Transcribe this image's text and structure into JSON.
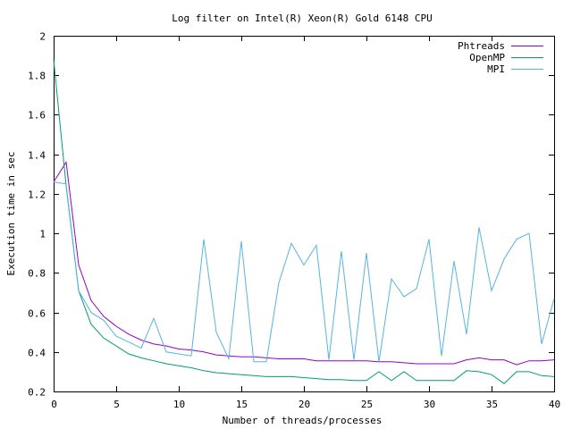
{
  "chart_data": {
    "type": "line",
    "title": "Log filter on Intel(R) Xeon(R) Gold 6148 CPU",
    "xlabel": "Number of threads/processes",
    "ylabel": "Execution time in sec",
    "xlim": [
      0,
      40
    ],
    "ylim": [
      0.2,
      2
    ],
    "xticks": [
      0,
      5,
      10,
      15,
      20,
      25,
      30,
      35,
      40
    ],
    "xtick_labels": [
      "0",
      "5",
      "10",
      "15",
      "20",
      "25",
      "30",
      "35",
      "40"
    ],
    "yticks": [
      0.2,
      0.4,
      0.6,
      0.8,
      1.0,
      1.2,
      1.4,
      1.6,
      1.8,
      2.0
    ],
    "ytick_labels": [
      "0.2",
      "0.4",
      "0.6",
      "0.8",
      "1",
      "1.2",
      "1.4",
      "1.6",
      "1.8",
      "2"
    ],
    "grid": false,
    "legend_position": "top-right",
    "x": [
      0,
      1,
      2,
      3,
      4,
      5,
      6,
      7,
      8,
      9,
      10,
      11,
      12,
      13,
      14,
      15,
      16,
      17,
      18,
      19,
      20,
      21,
      22,
      23,
      24,
      25,
      26,
      27,
      28,
      29,
      30,
      31,
      32,
      33,
      34,
      35,
      36,
      37,
      38,
      39,
      40
    ],
    "series": [
      {
        "name": "Phtreads",
        "color": "#9400d3",
        "values": [
          1.26,
          1.36,
          0.84,
          0.66,
          0.58,
          0.53,
          0.49,
          0.46,
          0.44,
          0.43,
          0.415,
          0.41,
          0.4,
          0.385,
          0.38,
          0.375,
          0.375,
          0.37,
          0.365,
          0.365,
          0.365,
          0.355,
          0.355,
          0.355,
          0.355,
          0.355,
          0.35,
          0.35,
          0.345,
          0.34,
          0.34,
          0.34,
          0.34,
          0.36,
          0.37,
          0.36,
          0.36,
          0.335,
          0.355,
          0.355,
          0.36
        ]
      },
      {
        "name": "OpenMP",
        "color": "#009e73",
        "values": [
          1.88,
          1.24,
          0.71,
          0.54,
          0.47,
          0.43,
          0.39,
          0.37,
          0.355,
          0.34,
          0.33,
          0.32,
          0.305,
          0.295,
          0.29,
          0.285,
          0.28,
          0.275,
          0.275,
          0.275,
          0.27,
          0.265,
          0.26,
          0.26,
          0.255,
          0.255,
          0.3,
          0.255,
          0.3,
          0.255,
          0.255,
          0.255,
          0.255,
          0.305,
          0.3,
          0.285,
          0.24,
          0.3,
          0.3,
          0.28,
          0.275
        ]
      },
      {
        "name": "MPI",
        "color": "#56b4e9",
        "values": [
          1.26,
          1.25,
          0.71,
          0.6,
          0.56,
          0.48,
          0.45,
          0.42,
          0.57,
          0.4,
          0.39,
          0.38,
          0.97,
          0.5,
          0.365,
          0.96,
          0.35,
          0.35,
          0.75,
          0.95,
          0.84,
          0.94,
          0.36,
          0.91,
          0.36,
          0.9,
          0.35,
          0.77,
          0.68,
          0.72,
          0.97,
          0.38,
          0.86,
          0.49,
          1.03,
          0.71,
          0.87,
          0.97,
          1.0,
          0.44,
          0.67
        ]
      }
    ]
  }
}
